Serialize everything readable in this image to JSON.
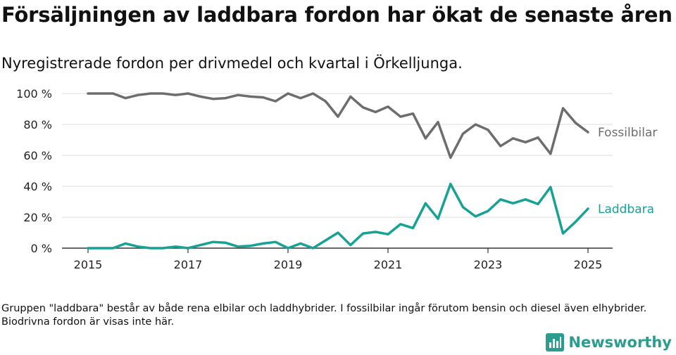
{
  "title": "Försäljningen av laddbara fordon har ökat de senaste åren",
  "subtitle": "Nyregistrerade fordon per drivmedel och kvartal i Örkelljunga.",
  "footnote": "Gruppen \"laddbara\" består av både rena elbilar och laddhybrider. I fossilbilar ingår förutom bensin och diesel även elhybrider. Biodrivna fordon är visas inte här.",
  "logo": {
    "text": "Newsworthy",
    "icon": "bar-chart-icon"
  },
  "colors": {
    "fossil": "#6d6d6d",
    "laddbara": "#16a294",
    "grid": "#dddddd",
    "axis": "#333333",
    "brand": "#2a9d8f"
  },
  "chart_data": {
    "type": "line",
    "ylim": [
      0,
      100
    ],
    "xlim": [
      2015,
      2025.25
    ],
    "yticks": [
      0,
      20,
      40,
      60,
      80,
      100
    ],
    "ytick_labels": [
      "0 %",
      "20 %",
      "40 %",
      "60 %",
      "80 %",
      "100 %"
    ],
    "xticks": [
      2015,
      2017,
      2019,
      2021,
      2023,
      2025
    ],
    "xtick_labels": [
      "2015",
      "2017",
      "2019",
      "2021",
      "2023",
      "2025"
    ],
    "grid": true,
    "x": [
      2015.0,
      2015.25,
      2015.5,
      2015.75,
      2016.0,
      2016.25,
      2016.5,
      2016.75,
      2017.0,
      2017.25,
      2017.5,
      2017.75,
      2018.0,
      2018.25,
      2018.5,
      2018.75,
      2019.0,
      2019.25,
      2019.5,
      2019.75,
      2020.0,
      2020.25,
      2020.5,
      2020.75,
      2021.0,
      2021.25,
      2021.5,
      2021.75,
      2022.0,
      2022.25,
      2022.5,
      2022.75,
      2023.0,
      2023.25,
      2023.5,
      2023.75,
      2024.0,
      2024.25,
      2024.5,
      2024.75,
      2025.0
    ],
    "series": [
      {
        "name": "Fossilbilar",
        "values": [
          100,
          100,
          100,
          97,
          99,
          100,
          100,
          99,
          100,
          98,
          96.5,
          97,
          99,
          98,
          97.5,
          95,
          100,
          97,
          100,
          95,
          85,
          98,
          91,
          88,
          91.5,
          85,
          87,
          71,
          81.5,
          58.5,
          74,
          80,
          76.5,
          66,
          71,
          68.5,
          71.5,
          61,
          90.5,
          81,
          75
        ]
      },
      {
        "name": "Laddbara",
        "values": [
          0,
          0,
          0,
          3,
          1,
          0,
          0,
          1,
          0,
          2,
          4,
          3.5,
          1,
          1.5,
          3,
          4,
          0,
          3,
          0,
          5,
          10,
          2,
          9.5,
          10.5,
          9,
          15.5,
          13,
          29,
          19,
          41.5,
          26.5,
          20.5,
          24,
          31.5,
          29,
          31.5,
          28.5,
          39.5,
          9.5,
          17,
          25.5
        ]
      }
    ]
  }
}
